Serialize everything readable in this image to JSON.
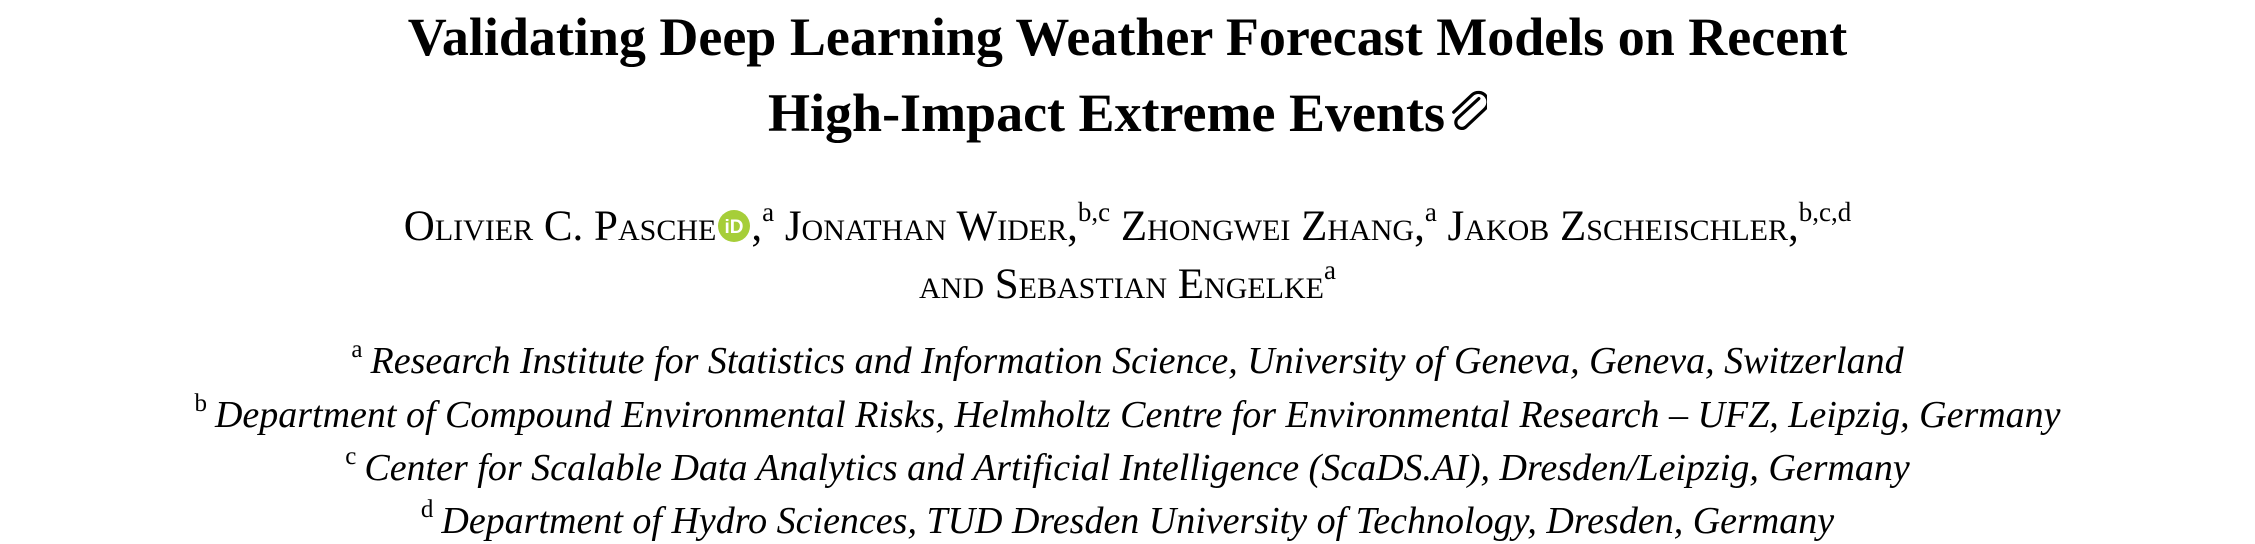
{
  "paper": {
    "title_line1": "Validating Deep Learning Weather Forecast Models on Recent",
    "title_line2": "High-Impact Extreme Events",
    "title_icon": "paperclip-icon",
    "authors": [
      {
        "name": "Olivier C. Pasche",
        "sup": "a",
        "orcid_icon": "orcid-icon"
      },
      {
        "name": "Jonathan Wider",
        "sup": "b,c"
      },
      {
        "name": "Zhongwei Zhang",
        "sup": "a"
      },
      {
        "name": "Jakob Zscheischler",
        "sup": "b,c,d"
      },
      {
        "name": "Sebastian Engelke",
        "sup": "a"
      }
    ],
    "and_word": "and",
    "affiliations": [
      {
        "mark": "a",
        "text": "Research Institute for Statistics and Information Science, University of Geneva, Geneva, Switzerland"
      },
      {
        "mark": "b",
        "text": "Department of Compound Environmental Risks, Helmholtz Centre for Environmental Research – UFZ, Leipzig, Germany"
      },
      {
        "mark": "c",
        "text": "Center for Scalable Data Analytics and Artificial Intelligence (ScaDS.AI), Dresden/Leipzig, Germany"
      },
      {
        "mark": "d",
        "text": "Department of Hydro Sciences, TUD Dresden University of Technology, Dresden, Germany"
      }
    ],
    "colors": {
      "text": "#000000",
      "orcid_green": "#a6ce39"
    }
  }
}
